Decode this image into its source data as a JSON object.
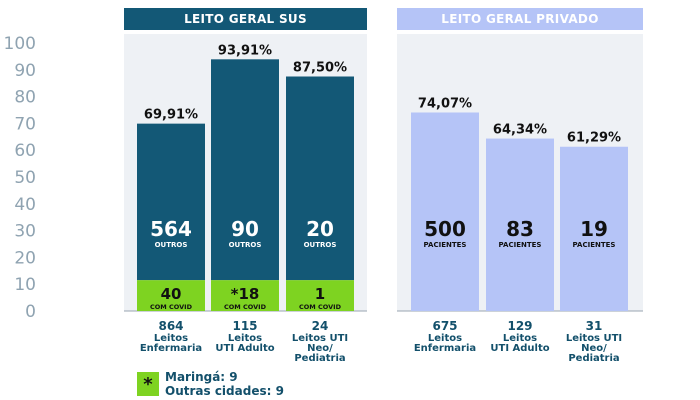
{
  "chart_data": {
    "type": "bar",
    "y_ticks": [
      "100",
      "90",
      "80",
      "70",
      "60",
      "50",
      "40",
      "30",
      "20",
      "10",
      "0"
    ],
    "ylim": [
      0,
      100
    ],
    "groups": [
      {
        "title": "LEITO GERAL SUS",
        "bar_color": "#135876",
        "base_color": "#7ed321",
        "label_color": "#ffffff",
        "bars": [
          {
            "percent_label": "69,91%",
            "value": 69.91,
            "main_count": "564",
            "main_label": "OUTROS",
            "base_count": "40",
            "base_label": "COM COVID",
            "base_value": 11.5,
            "total_count": "864",
            "category_lines": [
              "Leitos",
              "Enfermaria"
            ]
          },
          {
            "percent_label": "93,91%",
            "value": 93.91,
            "main_count": "90",
            "main_label": "OUTROS",
            "base_count": "*18",
            "base_label": "COM COVID",
            "base_value": 11.5,
            "total_count": "115",
            "category_lines": [
              "Leitos",
              "UTI Adulto"
            ]
          },
          {
            "percent_label": "87,50%",
            "value": 87.5,
            "main_count": "20",
            "main_label": "OUTROS",
            "base_count": "1",
            "base_label": "COM COVID",
            "base_value": 11.5,
            "total_count": "24",
            "category_lines": [
              "Leitos UTI",
              "Neo/",
              "Pediatria"
            ]
          }
        ]
      },
      {
        "title": "LEITO GERAL PRIVADO",
        "bar_color": "#b5c4f7",
        "label_color": "#111111",
        "bars": [
          {
            "percent_label": "74,07%",
            "value": 74.07,
            "main_count": "500",
            "main_label": "PACIENTES",
            "total_count": "675",
            "category_lines": [
              "Leitos",
              "Enfermaria"
            ]
          },
          {
            "percent_label": "64,34%",
            "value": 64.34,
            "main_count": "83",
            "main_label": "PACIENTES",
            "total_count": "129",
            "category_lines": [
              "Leitos",
              "UTI Adulto"
            ]
          },
          {
            "percent_label": "61,29%",
            "value": 61.29,
            "main_count": "19",
            "main_label": "PACIENTES",
            "total_count": "31",
            "category_lines": [
              "Leitos UTI",
              "Neo/",
              "Pediatria"
            ]
          }
        ]
      }
    ]
  },
  "legend": {
    "symbol": "*",
    "line1": "Maringá: 9",
    "line2": "Outras cidades: 9"
  }
}
